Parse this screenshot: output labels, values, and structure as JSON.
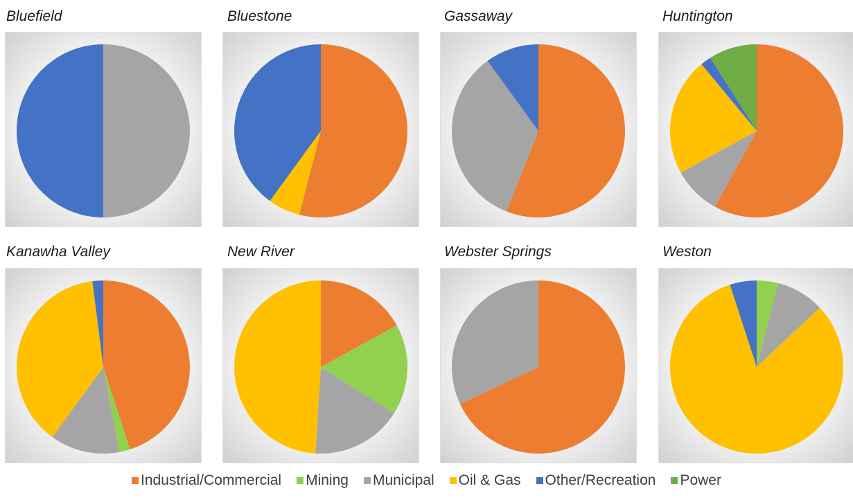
{
  "chart_data": [
    {
      "type": "pie",
      "title": "Bluefield",
      "slices": [
        {
          "label": "Municipal",
          "value": 50
        },
        {
          "label": "Other/Recreation",
          "value": 50
        }
      ]
    },
    {
      "type": "pie",
      "title": "Bluestone",
      "slices": [
        {
          "label": "Industrial/Commercial",
          "value": 54
        },
        {
          "label": "Oil & Gas",
          "value": 6
        },
        {
          "label": "Other/Recreation",
          "value": 40
        }
      ]
    },
    {
      "type": "pie",
      "title": "Gassaway",
      "slices": [
        {
          "label": "Industrial/Commercial",
          "value": 56
        },
        {
          "label": "Municipal",
          "value": 34
        },
        {
          "label": "Other/Recreation",
          "value": 10
        }
      ]
    },
    {
      "type": "pie",
      "title": "Huntington",
      "slices": [
        {
          "label": "Industrial/Commercial",
          "value": 58
        },
        {
          "label": "Municipal",
          "value": 9
        },
        {
          "label": "Oil & Gas",
          "value": 22
        },
        {
          "label": "Other/Recreation",
          "value": 2
        },
        {
          "label": "Power",
          "value": 9
        }
      ]
    },
    {
      "type": "pie",
      "title": "Kanawha Valley",
      "slices": [
        {
          "label": "Industrial/Commercial",
          "value": 45
        },
        {
          "label": "Mining",
          "value": 2
        },
        {
          "label": "Municipal",
          "value": 13
        },
        {
          "label": "Oil & Gas",
          "value": 38
        },
        {
          "label": "Other/Recreation",
          "value": 2
        }
      ]
    },
    {
      "type": "pie",
      "title": "New River",
      "slices": [
        {
          "label": "Industrial/Commercial",
          "value": 17
        },
        {
          "label": "Mining",
          "value": 17
        },
        {
          "label": "Municipal",
          "value": 17
        },
        {
          "label": "Oil & Gas",
          "value": 49
        }
      ]
    },
    {
      "type": "pie",
      "title": "Webster Springs",
      "slices": [
        {
          "label": "Industrial/Commercial",
          "value": 68
        },
        {
          "label": "Municipal",
          "value": 32
        }
      ]
    },
    {
      "type": "pie",
      "title": "Weston",
      "slices": [
        {
          "label": "Mining",
          "value": 4
        },
        {
          "label": "Municipal",
          "value": 9
        },
        {
          "label": "Oil & Gas",
          "value": 82
        },
        {
          "label": "Other/Recreation",
          "value": 5
        }
      ]
    }
  ],
  "legend": [
    {
      "label": "Industrial/Commercial",
      "color": "#ED7D31"
    },
    {
      "label": "Mining",
      "color": "#92D050"
    },
    {
      "label": "Municipal",
      "color": "#A5A5A5"
    },
    {
      "label": "Oil & Gas",
      "color": "#FFC000"
    },
    {
      "label": "Other/Recreation",
      "color": "#4472C4"
    },
    {
      "label": "Power",
      "color": "#70AD47"
    }
  ]
}
